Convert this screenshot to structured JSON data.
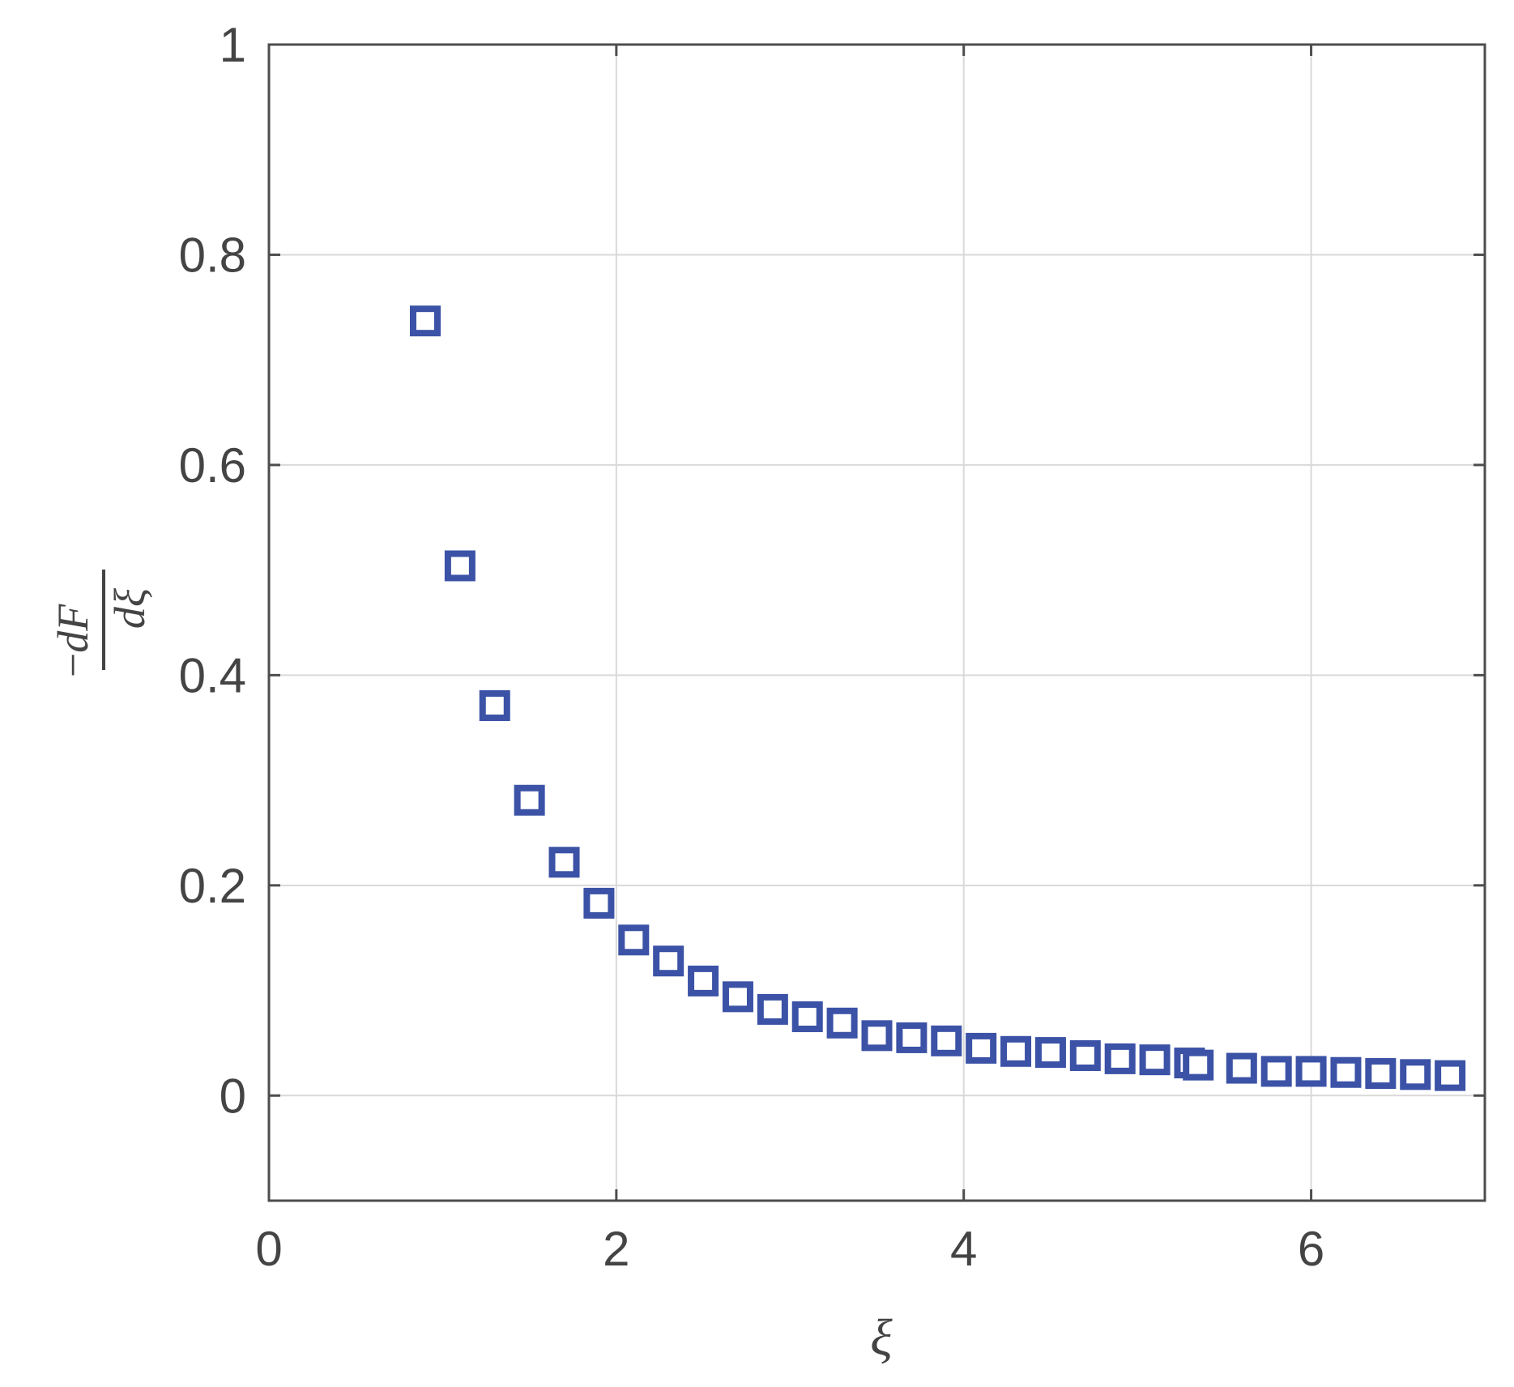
{
  "chart_data": {
    "type": "scatter",
    "xlabel": "ξ",
    "ylabel": {
      "prefix": "−",
      "numerator": "dF",
      "denominator": "dξ"
    },
    "xlim": [
      0,
      7
    ],
    "ylim": [
      -0.1,
      1
    ],
    "xticks": [
      0,
      2,
      4,
      6
    ],
    "yticks": [
      0,
      0.2,
      0.4,
      0.6,
      0.8,
      1
    ],
    "xtick_labels": [
      "0",
      "2",
      "4",
      "6"
    ],
    "ytick_labels": [
      "0",
      "0.2",
      "0.4",
      "0.6",
      "0.8",
      "1"
    ],
    "grid": true,
    "legend": "none",
    "marker": "square",
    "colors": {
      "marker": "#3b52a6",
      "axes": "#4d4d4d",
      "grid": "#d9d9d9"
    },
    "series": [
      {
        "x": [
          0.9,
          1.1,
          1.3,
          1.5,
          1.7,
          1.9,
          2.1,
          2.3,
          2.5,
          2.7,
          2.9,
          3.1,
          3.3,
          3.5,
          3.7,
          3.9,
          4.1,
          4.3,
          4.5,
          4.7,
          4.9,
          5.1,
          5.3,
          5.35,
          5.6,
          5.8,
          6.0,
          6.2,
          6.4,
          6.6,
          6.8
        ],
        "y": [
          0.737,
          0.504,
          0.371,
          0.281,
          0.222,
          0.183,
          0.148,
          0.128,
          0.109,
          0.094,
          0.082,
          0.075,
          0.069,
          0.057,
          0.055,
          0.052,
          0.045,
          0.042,
          0.041,
          0.038,
          0.035,
          0.034,
          0.031,
          0.029,
          0.026,
          0.023,
          0.023,
          0.022,
          0.021,
          0.02,
          0.019
        ]
      }
    ]
  }
}
